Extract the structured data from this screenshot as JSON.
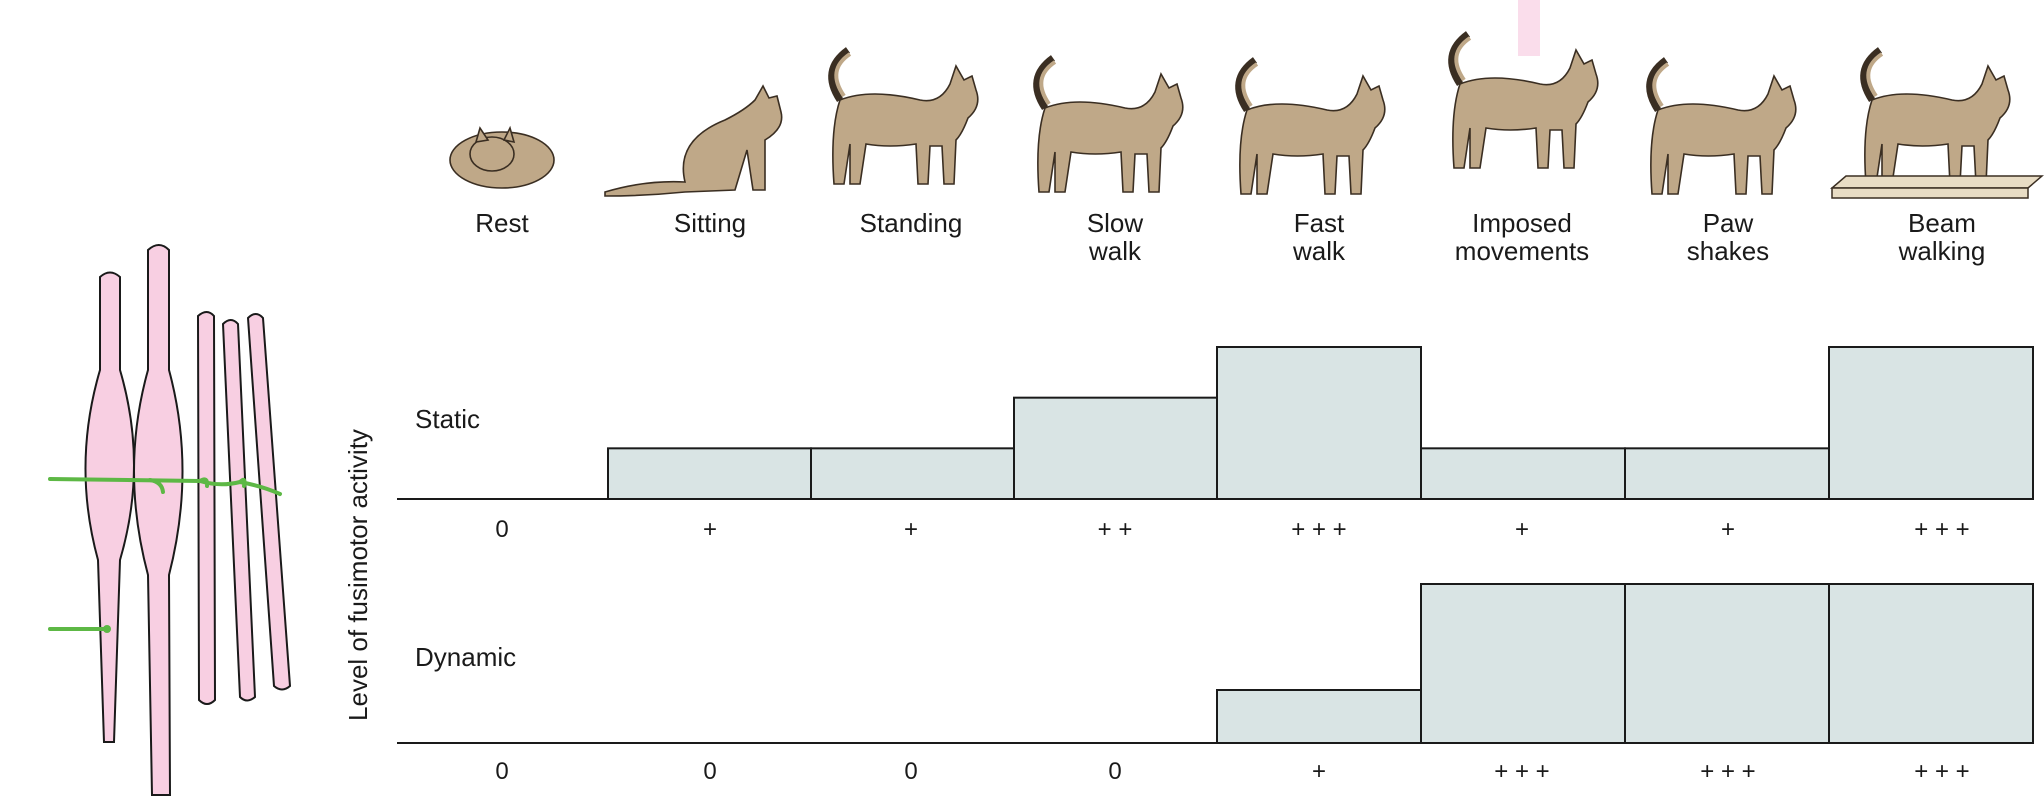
{
  "chart_data": {
    "type": "bar",
    "ylabel": "Level of fusimotor activity",
    "categories": [
      {
        "lines": [
          "Rest"
        ],
        "icon": "cat-resting-curled-icon"
      },
      {
        "lines": [
          "Sitting"
        ],
        "icon": "cat-sitting-icon"
      },
      {
        "lines": [
          "Standing"
        ],
        "icon": "cat-standing-icon"
      },
      {
        "lines": [
          "Slow",
          "walk"
        ],
        "icon": "cat-slow-walk-icon"
      },
      {
        "lines": [
          "Fast",
          "walk"
        ],
        "icon": "cat-fast-walk-icon"
      },
      {
        "lines": [
          "Imposed",
          "movements"
        ],
        "icon": "cat-imposed-movements-icon"
      },
      {
        "lines": [
          "Paw",
          "shakes"
        ],
        "icon": "cat-paw-shake-icon"
      },
      {
        "lines": [
          "Beam",
          "walking"
        ],
        "icon": "cat-beam-walking-icon"
      }
    ],
    "series": [
      {
        "name": "Static",
        "values": [
          0,
          1,
          1,
          2,
          3,
          1,
          1,
          3
        ],
        "labels": [
          "0",
          "+",
          "+",
          "+ +",
          "+ + +",
          "+",
          "+",
          "+ + +"
        ]
      },
      {
        "name": "Dynamic",
        "values": [
          0,
          0,
          0,
          0,
          1,
          3,
          3,
          3
        ],
        "labels": [
          "0",
          "0",
          "0",
          "0",
          "+",
          "+ + +",
          "+ + +",
          "+ + +"
        ]
      }
    ],
    "ylim": [
      0,
      3
    ],
    "grid": false,
    "legend": "none",
    "colors": {
      "bar_fill": "#d9e4e4",
      "bar_stroke": "#1a1a1a",
      "fiber_fill": "#f8cfe2",
      "nerve": "#5db845",
      "cat_fur": "#bfa888"
    }
  },
  "illustration": {
    "muscle_spindle_icon": "muscle-spindle-icon"
  }
}
